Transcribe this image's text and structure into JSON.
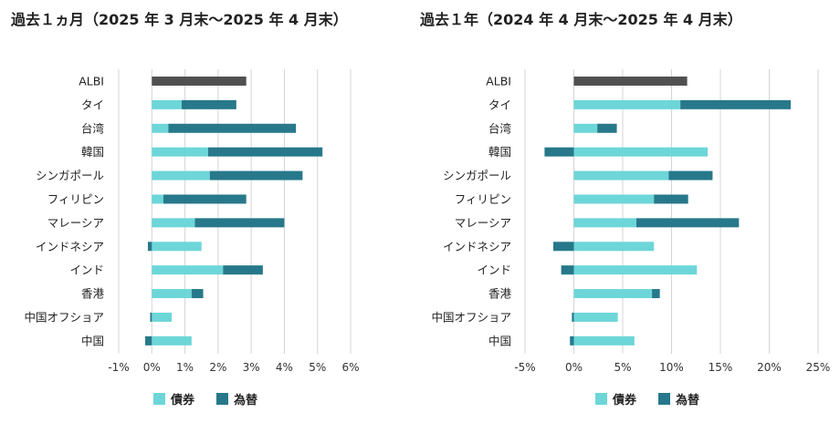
{
  "colors": {
    "bond": "#6dd6d8",
    "fx": "#27788a",
    "albi": "#505050",
    "grid": "#d4d4d4"
  },
  "legend": {
    "bond": "債券",
    "fx": "為替"
  },
  "chart_data": [
    {
      "type": "bar",
      "stacked": true,
      "orientation": "horizontal",
      "title": "過去１ヵ月（2025 年 3 月末～2025 年 4 月末）",
      "categories": [
        "ALBI",
        "タイ",
        "台湾",
        "韓国",
        "シンガポール",
        "フィリピン",
        "マレーシア",
        "インドネシア",
        "インド",
        "香港",
        "中国オフショア",
        "中国"
      ],
      "series": [
        {
          "name": "債券",
          "values": [
            null,
            0.9,
            0.5,
            1.7,
            1.75,
            0.35,
            1.3,
            1.5,
            2.15,
            1.2,
            0.6,
            1.2
          ]
        },
        {
          "name": "為替",
          "values": [
            null,
            1.65,
            3.85,
            3.45,
            2.8,
            2.5,
            2.7,
            -0.12,
            1.2,
            0.35,
            -0.05,
            -0.2
          ]
        },
        {
          "name": "ALBI",
          "values": [
            2.85,
            null,
            null,
            null,
            null,
            null,
            null,
            null,
            null,
            null,
            null,
            null
          ]
        }
      ],
      "xlim": [
        -1,
        6
      ],
      "ticks": [
        -1,
        0,
        1,
        2,
        3,
        4,
        5,
        6
      ],
      "tick_labels": [
        "-1%",
        "0%",
        "1%",
        "2%",
        "3%",
        "4%",
        "5%",
        "6%"
      ]
    },
    {
      "type": "bar",
      "stacked": true,
      "orientation": "horizontal",
      "title": "過去１年（2024 年 4 月末～2025 年 4 月末）",
      "categories": [
        "ALBI",
        "タイ",
        "台湾",
        "韓国",
        "シンガポール",
        "フィリピン",
        "マレーシア",
        "インドネシア",
        "インド",
        "香港",
        "中国オフショア",
        "中国"
      ],
      "series": [
        {
          "name": "債券",
          "values": [
            null,
            10.9,
            2.4,
            13.7,
            9.7,
            8.2,
            6.4,
            8.2,
            12.6,
            8.0,
            4.5,
            6.2
          ]
        },
        {
          "name": "為替",
          "values": [
            null,
            11.3,
            2.0,
            -3.0,
            4.5,
            3.5,
            10.5,
            -2.1,
            -1.3,
            0.8,
            -0.2,
            -0.4
          ]
        },
        {
          "name": "ALBI",
          "values": [
            11.6,
            null,
            null,
            null,
            null,
            null,
            null,
            null,
            null,
            null,
            null,
            null
          ]
        }
      ],
      "xlim": [
        -5,
        25
      ],
      "ticks": [
        -5,
        0,
        5,
        10,
        15,
        20,
        25
      ],
      "tick_labels": [
        "-5%",
        "0%",
        "5%",
        "10%",
        "15%",
        "20%",
        "25%"
      ]
    }
  ]
}
